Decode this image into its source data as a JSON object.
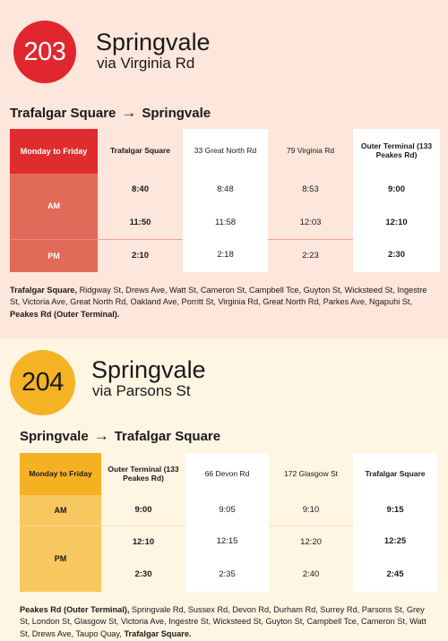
{
  "route1": {
    "number": "203",
    "name": "Springvale",
    "via": "via Virginia Rd",
    "direction_from": "Trafalgar Square",
    "direction_arrow": "→",
    "direction_to": "Springvale",
    "timetable": {
      "day_label": "Monday to Friday",
      "stops": [
        "Trafalgar Square",
        "33 Great North Rd",
        "79 Virginia Rd",
        "Outer Terminal (133 Peakes Rd)"
      ],
      "am_label": "AM",
      "pm_label": "PM",
      "am_rows": [
        [
          "8:40",
          "8:48",
          "8:53",
          "9:00"
        ],
        [
          "11:50",
          "11:58",
          "12:03",
          "12:10"
        ]
      ],
      "pm_rows": [
        [
          "2:10",
          "2:18",
          "2:23",
          "2:30"
        ]
      ]
    },
    "stops_list": {
      "start": "Trafalgar Square,",
      "middle": " Ridgway St, Drews Ave, Watt St, Cameron St, Campbell Tce, Guyton St, Wicksteed St, Ingestre St, Victoria Ave, Great North Rd, Oakland Ave, Porritt St, Virginia Rd, Great North Rd, Parkes Ave, Ngapuhi St, ",
      "end": "Peakes Rd (Outer Terminal)."
    },
    "colors": {
      "accent": "#e0262e",
      "label_bg": "#e26a58",
      "band_bg": "#fde6db"
    }
  },
  "route2": {
    "number": "204",
    "name": "Springvale",
    "via": "via Parsons St",
    "direction_from": "Springvale",
    "direction_arrow": "→",
    "direction_to": "Trafalgar Square",
    "timetable": {
      "day_label": "Monday to Friday",
      "stops": [
        "Outer Terminal (133 Peakes Rd)",
        "66 Devon Rd",
        "172 Glasgow St",
        "Trafalgar Square"
      ],
      "am_label": "AM",
      "pm_label": "PM",
      "am_rows": [
        [
          "9:00",
          "9:05",
          "9:10",
          "9:15"
        ]
      ],
      "pm_rows": [
        [
          "12:10",
          "12:15",
          "12:20",
          "12:25"
        ],
        [
          "2:30",
          "2:35",
          "2:40",
          "2:45"
        ]
      ]
    },
    "stops_list": {
      "start": "Peakes Rd (Outer Terminal),",
      "middle": " Springvale Rd, Sussex Rd, Devon Rd, Durham Rd, Surrey Rd, Parsons St, Grey St, London St, Glasgow St, Victoria Ave, Ingestre St, Wicksteed St, Guyton St, Campbell Tce, Cameron St, Watt St, Drews Ave, Taupo Quay, ",
      "end": "Trafalgar Square."
    },
    "colors": {
      "accent": "#f5b324",
      "label_bg": "#f8c860",
      "band_bg": "#fef5e3"
    }
  }
}
